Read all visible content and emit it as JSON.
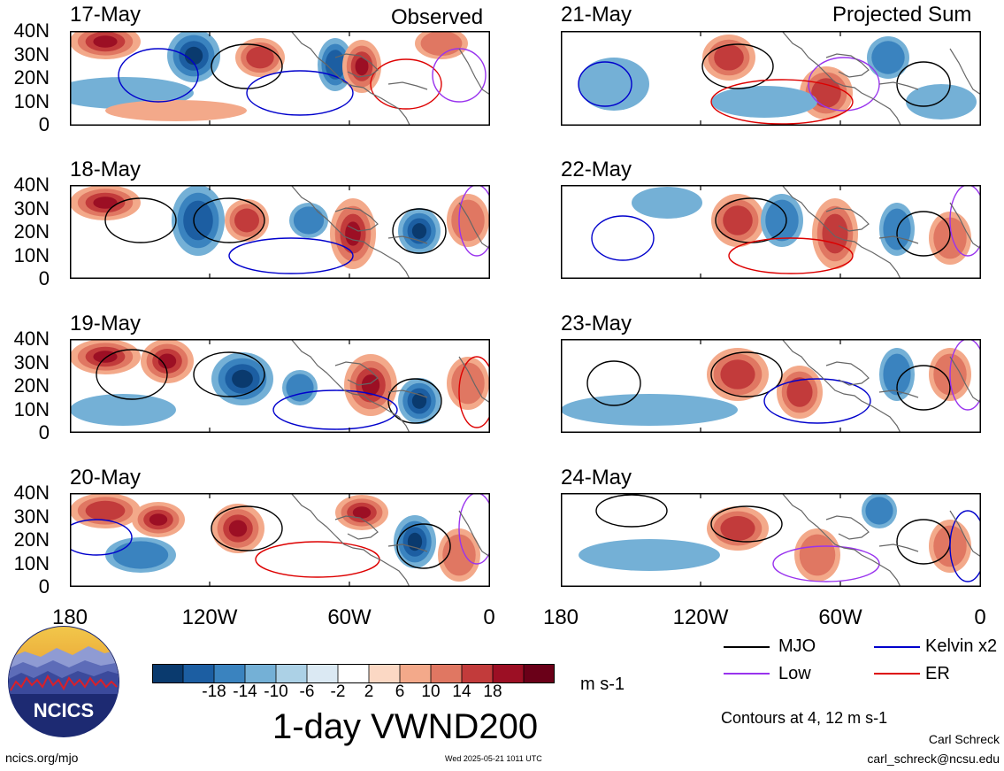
{
  "columns": {
    "left": "Observed",
    "right": "Projected Sum"
  },
  "panels": [
    {
      "date": "17-May",
      "column": "left"
    },
    {
      "date": "18-May",
      "column": "left"
    },
    {
      "date": "19-May",
      "column": "left"
    },
    {
      "date": "20-May",
      "column": "left"
    },
    {
      "date": "21-May",
      "column": "right"
    },
    {
      "date": "22-May",
      "column": "right"
    },
    {
      "date": "23-May",
      "column": "right"
    },
    {
      "date": "24-May",
      "column": "right"
    }
  ],
  "y_ticks": [
    "40N",
    "30N",
    "20N",
    "10N",
    "0"
  ],
  "x_ticks": [
    "180",
    "120W",
    "60W",
    "0"
  ],
  "colorbar": {
    "ticks": [
      "-18",
      "-14",
      "-10",
      "-6",
      "-2",
      "2",
      "6",
      "10",
      "14",
      "18"
    ],
    "colors": [
      "#0a3a6e",
      "#1c5ea2",
      "#3a83bf",
      "#74b0d6",
      "#acd1e6",
      "#dbe9f3",
      "#ffffff",
      "#fbd8c4",
      "#f3a98a",
      "#e07762",
      "#c23b3b",
      "#9c0f24",
      "#6a0018"
    ],
    "units": "m s-1"
  },
  "title": "1-day VWND200",
  "legend": [
    {
      "label": "MJO",
      "color": "#000000"
    },
    {
      "label": "Kelvin x2",
      "color": "#0000cc"
    },
    {
      "label": "Low",
      "color": "#9933ee"
    },
    {
      "label": "ER",
      "color": "#dd0000"
    }
  ],
  "contours_note": "Contours at 4, 12 m s-1",
  "author": "Carl Schreck",
  "email": "carl_schreck@ncsu.edu",
  "logo_text": "NCICS",
  "url": "ncics.org/mjo",
  "timestamp": "Wed 2025-05-21 1011 UTC"
}
